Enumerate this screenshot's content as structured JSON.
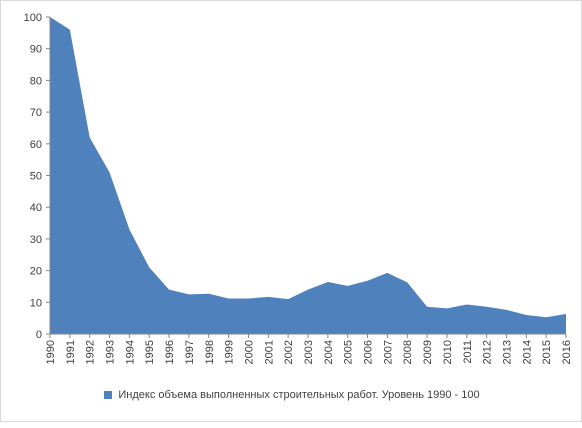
{
  "chart_data": {
    "type": "area",
    "title": "",
    "xlabel": "",
    "ylabel": "",
    "x": [
      "1990",
      "1991",
      "1992",
      "1993",
      "1994",
      "1995",
      "1996",
      "1997",
      "1998",
      "1999",
      "2000",
      "2001",
      "2002",
      "2003",
      "2004",
      "2005",
      "2006",
      "2007",
      "2008",
      "2009",
      "2010",
      "2011",
      "2012",
      "2013",
      "2014",
      "2015",
      "2016"
    ],
    "series": [
      {
        "name": "Индекс объема выполненных строительных работ. Уровень 1990 - 100",
        "color": "#4f81bd",
        "values": [
          100,
          96,
          62,
          51,
          33,
          21,
          14,
          12.5,
          12.7,
          11.2,
          11.2,
          11.7,
          11,
          14,
          16.4,
          15.2,
          16.8,
          19.3,
          16.3,
          8.6,
          8.1,
          9.3,
          8.6,
          7.6,
          6,
          5.3,
          6.3
        ]
      }
    ],
    "ylim": [
      0,
      100
    ],
    "yticks": [
      0,
      10,
      20,
      30,
      40,
      50,
      60,
      70,
      80,
      90,
      100
    ],
    "legend_position": "bottom",
    "grid": false
  }
}
